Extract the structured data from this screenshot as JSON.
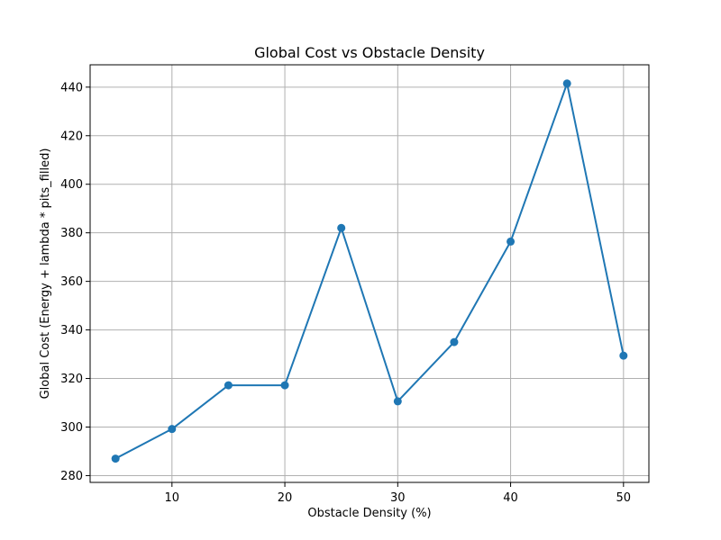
{
  "chart_data": {
    "type": "line",
    "title": "Global Cost vs Obstacle Density",
    "xlabel": "Obstacle Density (%)",
    "ylabel": "Global Cost (Energy + lambda * pits_filled)",
    "x": [
      5,
      10,
      15,
      20,
      25,
      30,
      35,
      40,
      45,
      50
    ],
    "series": [
      {
        "values": [
          287.0,
          299.2,
          317.2,
          317.2,
          382.0,
          310.6,
          335.0,
          376.4,
          441.5,
          329.4
        ],
        "color": "#1f77b4",
        "marker": "circle"
      }
    ],
    "xlim": [
      2.75,
      52.25
    ],
    "ylim": [
      277.2,
      449.2
    ],
    "xticks": [
      10,
      20,
      30,
      40,
      50
    ],
    "yticks": [
      280,
      300,
      320,
      340,
      360,
      380,
      400,
      420,
      440
    ],
    "grid": true
  }
}
